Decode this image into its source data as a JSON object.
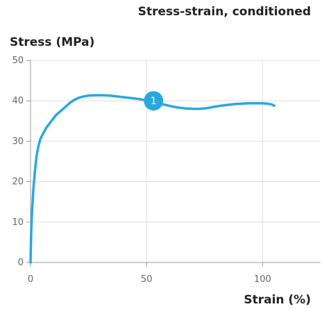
{
  "chart_data": {
    "type": "line",
    "title": "Stress-strain, conditioned",
    "xlabel": "Strain (%)",
    "ylabel": "Stress (MPa)",
    "xlim": [
      0,
      125
    ],
    "ylim": [
      0,
      50
    ],
    "x_ticks": [
      0,
      50,
      100
    ],
    "y_ticks": [
      0,
      10,
      20,
      30,
      40,
      50
    ],
    "grid": true,
    "colors": {
      "series": "#29a8e0",
      "grid": "#dddddd",
      "axis": "#999999"
    },
    "series": [
      {
        "x": [
          0,
          0.3,
          0.7,
          1.2,
          1.8,
          2.5,
          3.3,
          4.2,
          5.5,
          7,
          9,
          11,
          13,
          15,
          17,
          19,
          21,
          23,
          25,
          28,
          31,
          34,
          37,
          40,
          43,
          46,
          49,
          52,
          55,
          58,
          61,
          64,
          67,
          70,
          73,
          76,
          79,
          82,
          85,
          88,
          91,
          94,
          97,
          100,
          102,
          104,
          105
        ],
        "values": [
          0,
          8,
          13,
          18,
          22,
          26,
          28.5,
          30.5,
          32,
          33.5,
          35,
          36.5,
          37.5,
          38.5,
          39.5,
          40.3,
          40.8,
          41.1,
          41.3,
          41.4,
          41.4,
          41.3,
          41.1,
          40.9,
          40.7,
          40.5,
          40.2,
          39.8,
          39.4,
          39.0,
          38.6,
          38.3,
          38.1,
          38.0,
          38.0,
          38.2,
          38.5,
          38.8,
          39.0,
          39.2,
          39.3,
          39.4,
          39.4,
          39.4,
          39.3,
          39.1,
          38.8
        ]
      }
    ],
    "annotations": [
      {
        "label": "1",
        "x": 53,
        "y": 40
      }
    ]
  }
}
